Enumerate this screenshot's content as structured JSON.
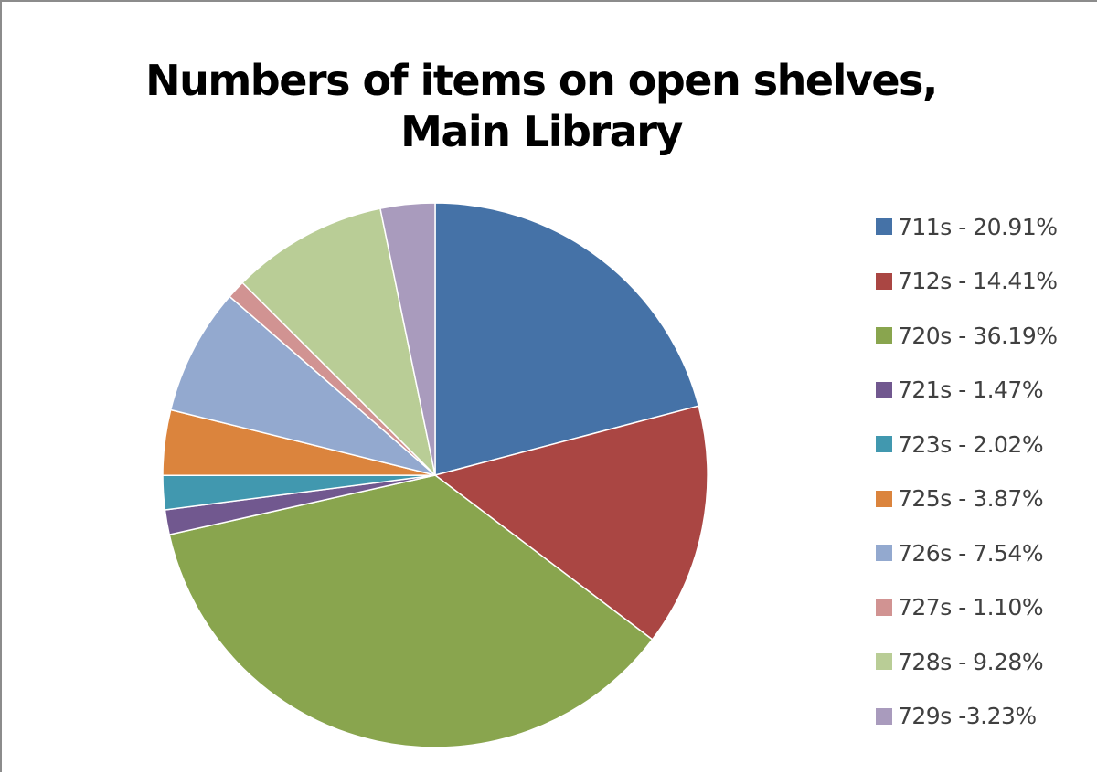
{
  "chart_data": {
    "type": "pie",
    "title": [
      "Numbers of items on open shelves,",
      "Main Library"
    ],
    "legend_position": "right",
    "start_angle": "12 o'clock, clockwise",
    "slices": [
      {
        "category": "711s",
        "value": 20.91,
        "label": "711s - 20.91%",
        "color": "#4572A7"
      },
      {
        "category": "712s",
        "value": 14.41,
        "label": "712s - 14.41%",
        "color": "#AA4643"
      },
      {
        "category": "720s",
        "value": 36.19,
        "label": "720s - 36.19%",
        "color": "#89A54E"
      },
      {
        "category": "721s",
        "value": 1.47,
        "label": "721s - 1.47%",
        "color": "#71588F"
      },
      {
        "category": "723s",
        "value": 2.02,
        "label": "723s - 2.02%",
        "color": "#4198AF"
      },
      {
        "category": "725s",
        "value": 3.87,
        "label": "725s - 3.87%",
        "color": "#DB843D"
      },
      {
        "category": "726s",
        "value": 7.54,
        "label": "726s - 7.54%",
        "color": "#93A9CF"
      },
      {
        "category": "727s",
        "value": 1.1,
        "label": "727s - 1.10%",
        "color": "#D19392"
      },
      {
        "category": "728s",
        "value": 9.28,
        "label": "728s - 9.28%",
        "color": "#B9CD96"
      },
      {
        "category": "729s",
        "value": 3.23,
        "label": "729s -3.23%",
        "color": "#A99BBD"
      }
    ]
  }
}
